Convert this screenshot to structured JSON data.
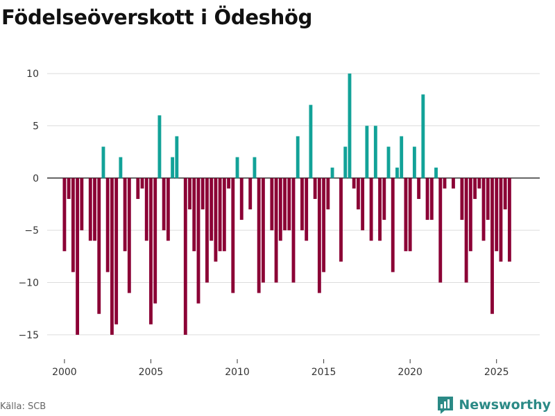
{
  "title": "Födelseöverskott i Ödeshög",
  "source": "Källa: SCB",
  "brand": "Newsworthy",
  "colors": {
    "positive": "#12a298",
    "negative": "#8b0035",
    "grid": "#dcdcdc",
    "zero": "#333333",
    "brand": "#2b8a86"
  },
  "chart_data": {
    "type": "bar",
    "xlabel": "",
    "ylabel": "",
    "xlim": [
      1999.0,
      2027.5
    ],
    "ylim": [
      -17,
      11
    ],
    "yticks": [
      10,
      5,
      0,
      -5,
      -10,
      -15
    ],
    "ytick_labels": [
      "10",
      "5",
      "0",
      "−5",
      "−10",
      "−15"
    ],
    "xticks": [
      2000,
      2005,
      2010,
      2015,
      2020,
      2025
    ],
    "xtick_labels": [
      "2000",
      "2005",
      "2010",
      "2015",
      "2020",
      "2025"
    ],
    "x_start": 2000.0,
    "x_step": 0.25,
    "values": [
      -7,
      -2,
      -9,
      -15,
      -5,
      0,
      -6,
      -6,
      -13,
      3,
      -9,
      -15,
      -14,
      2,
      -7,
      -11,
      0,
      -2,
      -1,
      -6,
      -14,
      -12,
      6,
      -5,
      -6,
      2,
      4,
      0,
      -15,
      -3,
      -7,
      -12,
      -3,
      -10,
      -6,
      -8,
      -7,
      -7,
      -1,
      -11,
      2,
      -4,
      0,
      -3,
      2,
      -11,
      -10,
      0,
      -5,
      -10,
      -6,
      -5,
      -5,
      -10,
      4,
      -5,
      -6,
      7,
      -2,
      -11,
      -9,
      -3,
      1,
      0,
      -8,
      3,
      10,
      -1,
      -3,
      -5,
      5,
      -6,
      5,
      -6,
      -4,
      3,
      -9,
      1,
      4,
      -7,
      -7,
      3,
      -2,
      8,
      -4,
      -4,
      1,
      -10,
      -1,
      0,
      -1,
      0,
      -4,
      -10,
      -7,
      -2,
      -1,
      -6,
      -4,
      -13,
      -7,
      -8,
      -3,
      -8
    ]
  }
}
